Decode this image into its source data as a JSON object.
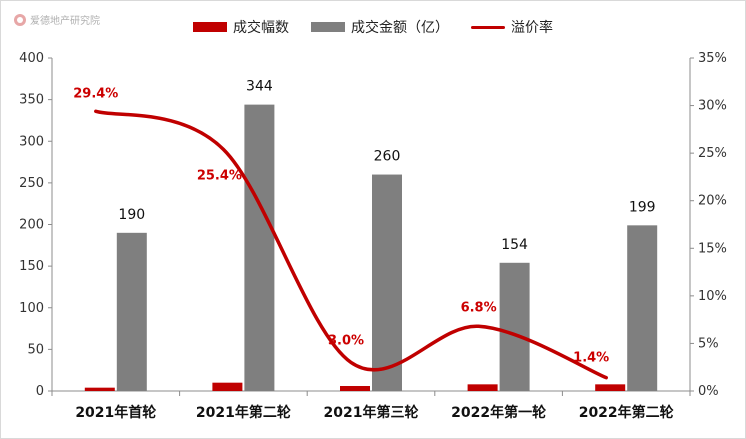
{
  "watermark": {
    "text": "爱德地产研究院",
    "icon": "logo-icon"
  },
  "chart_data": {
    "type": "bar",
    "categories": [
      "2021年首轮",
      "2021年第二轮",
      "2021年第三轮",
      "2022年第一轮",
      "2022年第二轮"
    ],
    "series": [
      {
        "name": "成交幅数",
        "type": "bar",
        "axis": "left",
        "color": "#c00000",
        "values": [
          4,
          10,
          6,
          8,
          8
        ]
      },
      {
        "name": "成交金额（亿）",
        "type": "bar",
        "axis": "left",
        "color": "#7f7f7f",
        "values": [
          190,
          344,
          260,
          154,
          199
        ]
      },
      {
        "name": "溢价率",
        "type": "line",
        "axis": "right",
        "color": "#c00000",
        "values": [
          29.4,
          25.4,
          3.0,
          6.8,
          1.4
        ],
        "labels": [
          "29.4%",
          "25.4%",
          "3.0%",
          "6.8%",
          "1.4%"
        ]
      }
    ],
    "ylim_left": [
      0,
      400
    ],
    "yticks_left": [
      0,
      50,
      100,
      150,
      200,
      250,
      300,
      350,
      400
    ],
    "ylim_right": [
      0,
      35
    ],
    "yticks_right": [
      "0%",
      "5%",
      "10%",
      "15%",
      "20%",
      "25%",
      "30%",
      "35%"
    ],
    "value_labels": [
      "190",
      "344",
      "260",
      "154",
      "199"
    ],
    "grid": false,
    "legend": "top-center"
  }
}
